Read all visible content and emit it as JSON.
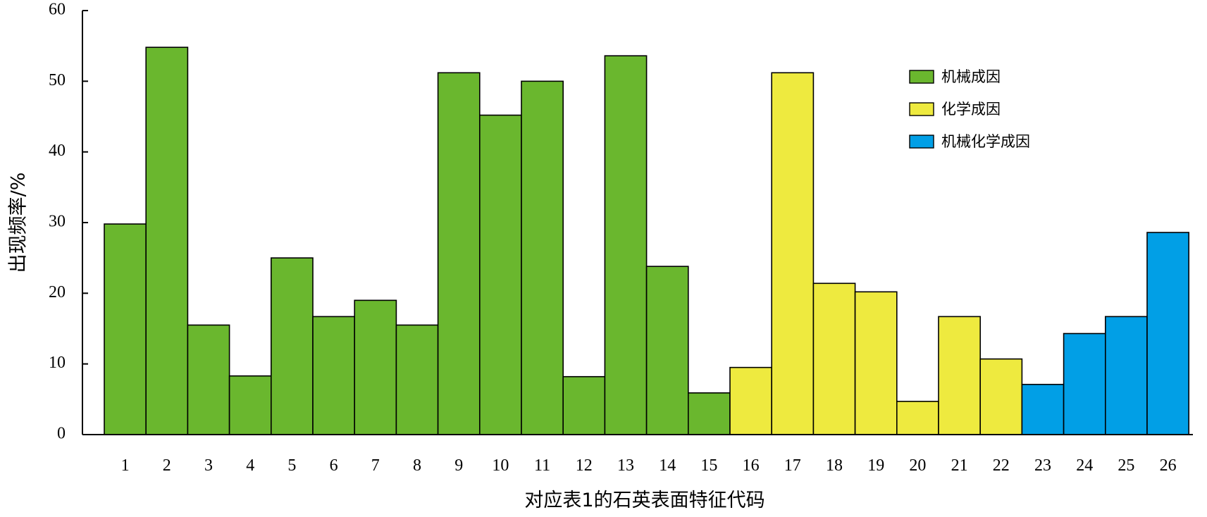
{
  "chart_data": {
    "type": "bar",
    "title": "",
    "xlabel": "对应表1的石英表面特征代码",
    "ylabel": "出现频率/%",
    "ylim": [
      0,
      60
    ],
    "yticks": [
      0,
      10,
      20,
      30,
      40,
      50,
      60
    ],
    "grid": false,
    "legend_position": "top-right",
    "categories": [
      "1",
      "2",
      "3",
      "4",
      "5",
      "6",
      "7",
      "8",
      "9",
      "10",
      "11",
      "12",
      "13",
      "14",
      "15",
      "16",
      "17",
      "18",
      "19",
      "20",
      "21",
      "22",
      "23",
      "24",
      "25",
      "26"
    ],
    "values": [
      29.8,
      54.8,
      15.5,
      8.3,
      25.0,
      16.7,
      19.0,
      15.5,
      51.2,
      45.2,
      50.0,
      8.2,
      53.6,
      23.8,
      5.9,
      9.5,
      51.2,
      21.4,
      20.2,
      4.7,
      16.7,
      10.7,
      7.1,
      14.3,
      16.7,
      28.6
    ],
    "groups": [
      0,
      0,
      0,
      0,
      0,
      0,
      0,
      0,
      0,
      0,
      0,
      0,
      0,
      0,
      0,
      1,
      1,
      1,
      1,
      1,
      1,
      1,
      2,
      2,
      2,
      2
    ],
    "series": [
      {
        "name": "机械成因",
        "color": "#6ab72e"
      },
      {
        "name": "化学成因",
        "color": "#eeea3f"
      },
      {
        "name": "机械化学成因",
        "color": "#019fe6"
      }
    ]
  }
}
